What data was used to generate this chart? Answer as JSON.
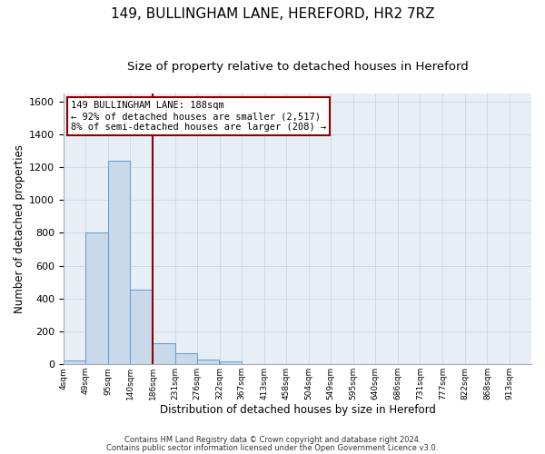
{
  "title": "149, BULLINGHAM LANE, HEREFORD, HR2 7RZ",
  "subtitle": "Size of property relative to detached houses in Hereford",
  "xlabel": "Distribution of detached houses by size in Hereford",
  "ylabel": "Number of detached properties",
  "bin_labels": [
    "4sqm",
    "49sqm",
    "95sqm",
    "140sqm",
    "186sqm",
    "231sqm",
    "276sqm",
    "322sqm",
    "367sqm",
    "413sqm",
    "458sqm",
    "504sqm",
    "549sqm",
    "595sqm",
    "640sqm",
    "686sqm",
    "731sqm",
    "777sqm",
    "822sqm",
    "868sqm",
    "913sqm"
  ],
  "bin_edges": [
    4,
    49,
    95,
    140,
    186,
    231,
    276,
    322,
    367,
    413,
    458,
    504,
    549,
    595,
    640,
    686,
    731,
    777,
    822,
    868,
    913
  ],
  "bin_width": 45,
  "bar_values": [
    25,
    800,
    1240,
    455,
    130,
    65,
    28,
    15,
    0,
    0,
    0,
    0,
    0,
    0,
    0,
    0,
    0,
    0,
    0,
    0
  ],
  "bar_color": "#c9d9ea",
  "bar_edge_color": "#5b9bd5",
  "vline_x": 186,
  "vline_color": "#8b0000",
  "ylim": [
    0,
    1650
  ],
  "yticks": [
    0,
    200,
    400,
    600,
    800,
    1000,
    1200,
    1400,
    1600
  ],
  "annotation_line1": "149 BULLINGHAM LANE: 188sqm",
  "annotation_line2": "← 92% of detached houses are smaller (2,517)",
  "annotation_line3": "8% of semi-detached houses are larger (208) →",
  "annotation_box_color": "#ffffff",
  "annotation_box_edge": "#8b0000",
  "footer1": "Contains HM Land Registry data © Crown copyright and database right 2024.",
  "footer2": "Contains public sector information licensed under the Open Government Licence v3.0.",
  "grid_color": "#c8d0dc",
  "bg_color": "#e8eef5",
  "title_fontsize": 11,
  "subtitle_fontsize": 9.5
}
